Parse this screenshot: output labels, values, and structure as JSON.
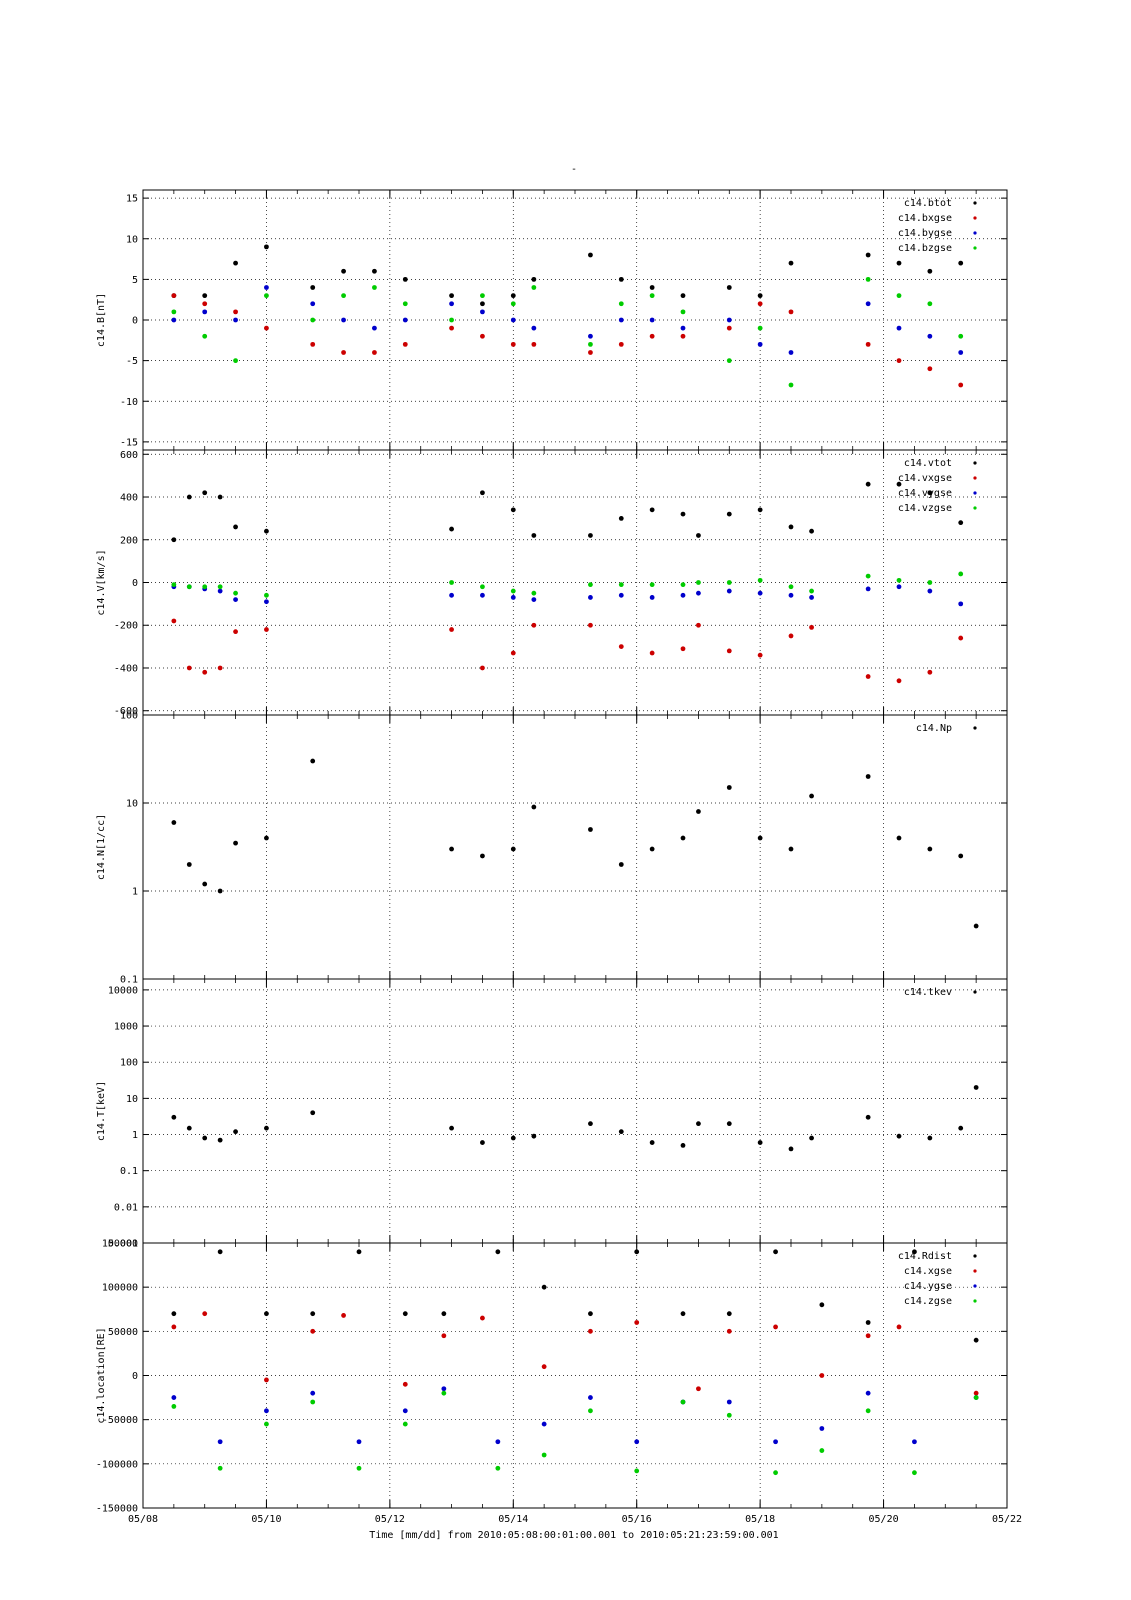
{
  "chart_data": {
    "type": "scatter",
    "title": "-",
    "xlabel": "Time [mm/dd]  from 2010:05:08:00:01:00.001  to  2010:05:21:23:59:00.001",
    "x_range": [
      "05/08",
      "05/22"
    ],
    "x_ticks": [
      "05/08",
      "05/10",
      "05/12",
      "05/14",
      "05/16",
      "05/18",
      "05/20",
      "05/22"
    ],
    "grid": true,
    "legend_placement": "top-right",
    "colors": {
      "black": "#000000",
      "red": "#cc0000",
      "blue": "#0000cc",
      "green": "#00cc00"
    },
    "panels": [
      {
        "ylabel": "c14.B[nT]",
        "ylim": [
          -16,
          16
        ],
        "scale": "linear",
        "y_ticks": [
          "15",
          "10",
          "5",
          "0",
          "-5",
          "-10",
          "-15"
        ],
        "y_tick_values": [
          15,
          10,
          5,
          0,
          -5,
          -10,
          -15
        ],
        "series": [
          {
            "name": "c14.btot",
            "color": "black",
            "x": [
              "05/08 12:00",
              "05/09 00:00",
              "05/09 12:00",
              "05/10 00:00",
              "05/10 18:00",
              "05/11 06:00",
              "05/11 18:00",
              "05/12 06:00",
              "05/13 00:00",
              "05/13 12:00",
              "05/14 00:00",
              "05/14 08:00",
              "05/15 06:00",
              "05/15 18:00",
              "05/16 06:00",
              "05/16 18:00",
              "05/17 12:00",
              "05/18 00:00",
              "05/18 12:00",
              "05/19 18:00",
              "05/20 06:00",
              "05/20 18:00",
              "05/21 06:00"
            ],
            "y": [
              3,
              3,
              7,
              9,
              4,
              6,
              6,
              5,
              3,
              2,
              3,
              5,
              8,
              5,
              4,
              3,
              4,
              3,
              7,
              8,
              7,
              6,
              7
            ]
          },
          {
            "name": "c14.bxgse",
            "color": "red",
            "x": [
              "05/08 12:00",
              "05/09 00:00",
              "05/09 12:00",
              "05/10 00:00",
              "05/10 18:00",
              "05/11 06:00",
              "05/11 18:00",
              "05/12 06:00",
              "05/13 00:00",
              "05/13 12:00",
              "05/14 00:00",
              "05/14 08:00",
              "05/15 06:00",
              "05/15 18:00",
              "05/16 06:00",
              "05/16 18:00",
              "05/17 12:00",
              "05/18 00:00",
              "05/18 12:00",
              "05/19 18:00",
              "05/20 06:00",
              "05/20 18:00",
              "05/21 06:00"
            ],
            "y": [
              3,
              2,
              1,
              -1,
              -3,
              -4,
              -4,
              -3,
              -1,
              -2,
              -3,
              -3,
              -4,
              -3,
              -2,
              -2,
              -1,
              2,
              1,
              -3,
              -5,
              -6,
              -8
            ]
          },
          {
            "name": "c14.bygse",
            "color": "blue",
            "x": [
              "05/08 12:00",
              "05/09 00:00",
              "05/09 12:00",
              "05/10 00:00",
              "05/10 18:00",
              "05/11 06:00",
              "05/11 18:00",
              "05/12 06:00",
              "05/13 00:00",
              "05/13 12:00",
              "05/14 00:00",
              "05/14 08:00",
              "05/15 06:00",
              "05/15 18:00",
              "05/16 06:00",
              "05/16 18:00",
              "05/17 12:00",
              "05/18 00:00",
              "05/18 12:00",
              "05/19 18:00",
              "05/20 06:00",
              "05/20 18:00",
              "05/21 06:00"
            ],
            "y": [
              0,
              1,
              0,
              4,
              2,
              0,
              -1,
              0,
              2,
              1,
              0,
              -1,
              -2,
              0,
              0,
              -1,
              0,
              -3,
              -4,
              2,
              -1,
              -2,
              -4
            ]
          },
          {
            "name": "c14.bzgse",
            "color": "green",
            "x": [
              "05/08 12:00",
              "05/09 00:00",
              "05/09 12:00",
              "05/10 00:00",
              "05/10 18:00",
              "05/11 06:00",
              "05/11 18:00",
              "05/12 06:00",
              "05/13 00:00",
              "05/13 12:00",
              "05/14 00:00",
              "05/14 08:00",
              "05/15 06:00",
              "05/15 18:00",
              "05/16 06:00",
              "05/16 18:00",
              "05/17 12:00",
              "05/18 00:00",
              "05/18 12:00",
              "05/19 18:00",
              "05/20 06:00",
              "05/20 18:00",
              "05/21 06:00"
            ],
            "y": [
              1,
              -2,
              -5,
              3,
              0,
              3,
              4,
              2,
              0,
              3,
              2,
              4,
              -3,
              2,
              3,
              1,
              -5,
              -1,
              -8,
              5,
              3,
              2,
              -2
            ]
          }
        ]
      },
      {
        "ylabel": "c14.V[km/s]",
        "ylim": [
          -620,
          620
        ],
        "scale": "linear",
        "y_ticks": [
          "600",
          "400",
          "200",
          "0",
          "-200",
          "-400",
          "-600"
        ],
        "y_tick_values": [
          600,
          400,
          200,
          0,
          -200,
          -400,
          -600
        ],
        "series": [
          {
            "name": "c14.vtot",
            "color": "black",
            "x": [
              "05/08 12:00",
              "05/08 18:00",
              "05/09 00:00",
              "05/09 06:00",
              "05/09 12:00",
              "05/10 00:00",
              "05/13 00:00",
              "05/13 12:00",
              "05/14 00:00",
              "05/14 08:00",
              "05/15 06:00",
              "05/15 18:00",
              "05/16 06:00",
              "05/16 18:00",
              "05/17 00:00",
              "05/17 12:00",
              "05/18 00:00",
              "05/18 12:00",
              "05/18 20:00",
              "05/19 18:00",
              "05/20 06:00",
              "05/20 18:00",
              "05/21 06:00"
            ],
            "y": [
              200,
              400,
              420,
              400,
              260,
              240,
              250,
              420,
              340,
              220,
              220,
              300,
              340,
              320,
              220,
              320,
              340,
              260,
              240,
              460,
              460,
              420,
              280
            ]
          },
          {
            "name": "c14.vxgse",
            "color": "red",
            "x": [
              "05/08 12:00",
              "05/08 18:00",
              "05/09 00:00",
              "05/09 06:00",
              "05/09 12:00",
              "05/10 00:00",
              "05/13 00:00",
              "05/13 12:00",
              "05/14 00:00",
              "05/14 08:00",
              "05/15 06:00",
              "05/15 18:00",
              "05/16 06:00",
              "05/16 18:00",
              "05/17 00:00",
              "05/17 12:00",
              "05/18 00:00",
              "05/18 12:00",
              "05/18 20:00",
              "05/19 18:00",
              "05/20 06:00",
              "05/20 18:00",
              "05/21 06:00"
            ],
            "y": [
              -180,
              -400,
              -420,
              -400,
              -230,
              -220,
              -220,
              -400,
              -330,
              -200,
              -200,
              -300,
              -330,
              -310,
              -200,
              -320,
              -340,
              -250,
              -210,
              -440,
              -460,
              -420,
              -260
            ]
          },
          {
            "name": "c14.vygse",
            "color": "blue",
            "x": [
              "05/08 12:00",
              "05/08 18:00",
              "05/09 00:00",
              "05/09 06:00",
              "05/09 12:00",
              "05/10 00:00",
              "05/13 00:00",
              "05/13 12:00",
              "05/14 00:00",
              "05/14 08:00",
              "05/15 06:00",
              "05/15 18:00",
              "05/16 06:00",
              "05/16 18:00",
              "05/17 00:00",
              "05/17 12:00",
              "05/18 00:00",
              "05/18 12:00",
              "05/18 20:00",
              "05/19 18:00",
              "05/20 06:00",
              "05/20 18:00",
              "05/21 06:00"
            ],
            "y": [
              -20,
              -20,
              -30,
              -40,
              -80,
              -90,
              -60,
              -60,
              -70,
              -80,
              -70,
              -60,
              -70,
              -60,
              -50,
              -40,
              -50,
              -60,
              -70,
              -30,
              -20,
              -40,
              -100
            ]
          },
          {
            "name": "c14.vzgse",
            "color": "green",
            "x": [
              "05/08 12:00",
              "05/08 18:00",
              "05/09 00:00",
              "05/09 06:00",
              "05/09 12:00",
              "05/10 00:00",
              "05/13 00:00",
              "05/13 12:00",
              "05/14 00:00",
              "05/14 08:00",
              "05/15 06:00",
              "05/15 18:00",
              "05/16 06:00",
              "05/16 18:00",
              "05/17 00:00",
              "05/17 12:00",
              "05/18 00:00",
              "05/18 12:00",
              "05/18 20:00",
              "05/19 18:00",
              "05/20 06:00",
              "05/20 18:00",
              "05/21 06:00"
            ],
            "y": [
              -10,
              -20,
              -20,
              -20,
              -50,
              -60,
              0,
              -20,
              -40,
              -50,
              -10,
              -10,
              -10,
              -10,
              0,
              0,
              10,
              -20,
              -40,
              30,
              10,
              0,
              40
            ]
          }
        ]
      },
      {
        "ylabel": "c14.N[1/cc]",
        "ylim": [
          0.1,
          100
        ],
        "scale": "log",
        "y_ticks": [
          "100",
          "10",
          "1",
          "0.1"
        ],
        "y_tick_values": [
          100,
          10,
          1,
          0.1
        ],
        "series": [
          {
            "name": "c14.Np",
            "color": "black",
            "x": [
              "05/08 12:00",
              "05/08 18:00",
              "05/09 00:00",
              "05/09 06:00",
              "05/09 12:00",
              "05/10 00:00",
              "05/10 18:00",
              "05/13 00:00",
              "05/13 12:00",
              "05/14 00:00",
              "05/14 08:00",
              "05/15 06:00",
              "05/15 18:00",
              "05/16 06:00",
              "05/16 18:00",
              "05/17 00:00",
              "05/17 12:00",
              "05/18 00:00",
              "05/18 12:00",
              "05/18 20:00",
              "05/19 18:00",
              "05/20 06:00",
              "05/20 18:00",
              "05/21 06:00",
              "05/21 12:00"
            ],
            "y": [
              6,
              2,
              1.2,
              1,
              3.5,
              4,
              30,
              3,
              2.5,
              3,
              9,
              5,
              2,
              3,
              4,
              8,
              15,
              4,
              3,
              12,
              20,
              4,
              3,
              2.5,
              0.4
            ]
          }
        ]
      },
      {
        "ylabel": "c14.T[keV]",
        "ylim": [
          0.001,
          20000
        ],
        "scale": "log",
        "y_ticks": [
          "10000",
          "1000",
          "100",
          "10",
          "1",
          "0.1",
          "0.01",
          "0.001"
        ],
        "y_tick_values": [
          10000,
          1000,
          100,
          10,
          1,
          0.1,
          0.01,
          0.001
        ],
        "series": [
          {
            "name": "c14.tkev",
            "color": "black",
            "x": [
              "05/08 12:00",
              "05/08 18:00",
              "05/09 00:00",
              "05/09 06:00",
              "05/09 12:00",
              "05/10 00:00",
              "05/10 18:00",
              "05/13 00:00",
              "05/13 12:00",
              "05/14 00:00",
              "05/14 08:00",
              "05/15 06:00",
              "05/15 18:00",
              "05/16 06:00",
              "05/16 18:00",
              "05/17 00:00",
              "05/17 12:00",
              "05/18 00:00",
              "05/18 12:00",
              "05/18 20:00",
              "05/19 18:00",
              "05/20 06:00",
              "05/20 18:00",
              "05/21 06:00",
              "05/21 12:00"
            ],
            "y": [
              3,
              1.5,
              0.8,
              0.7,
              1.2,
              1.5,
              4,
              1.5,
              0.6,
              0.8,
              0.9,
              2,
              1.2,
              0.6,
              0.5,
              2,
              2,
              0.6,
              0.4,
              0.8,
              3,
              0.9,
              0.8,
              1.5,
              20
            ]
          }
        ]
      },
      {
        "ylabel": "c14.location[RE]",
        "ylim": [
          -150000,
          150000
        ],
        "scale": "linear",
        "y_ticks": [
          "150000",
          "100000",
          "50000",
          "0",
          "-50000",
          "-100000",
          "-150000"
        ],
        "y_tick_values": [
          150000,
          100000,
          50000,
          0,
          -50000,
          -100000,
          -150000
        ],
        "series": [
          {
            "name": "c14.Rdist",
            "color": "black",
            "x": [
              "05/08 12:00",
              "05/09 06:00",
              "05/10 00:00",
              "05/10 18:00",
              "05/11 12:00",
              "05/12 06:00",
              "05/12 21:00",
              "05/13 18:00",
              "05/14 12:00",
              "05/15 06:00",
              "05/16 00:00",
              "05/16 18:00",
              "05/17 12:00",
              "05/18 06:00",
              "05/19 00:00",
              "05/19 18:00",
              "05/20 12:00",
              "05/21 12:00"
            ],
            "y": [
              70000,
              140000,
              70000,
              70000,
              140000,
              70000,
              70000,
              140000,
              100000,
              70000,
              140000,
              70000,
              70000,
              140000,
              80000,
              60000,
              140000,
              40000
            ]
          },
          {
            "name": "c14.xgse",
            "color": "red",
            "x": [
              "05/08 12:00",
              "05/09 00:00",
              "05/10 00:00",
              "05/10 18:00",
              "05/11 06:00",
              "05/12 06:00",
              "05/12 21:00",
              "05/13 12:00",
              "05/14 12:00",
              "05/15 06:00",
              "05/16 00:00",
              "05/17 00:00",
              "05/17 12:00",
              "05/18 06:00",
              "05/19 00:00",
              "05/19 18:00",
              "05/20 06:00",
              "05/21 12:00"
            ],
            "y": [
              55000,
              70000,
              -5000,
              50000,
              68000,
              -10000,
              45000,
              65000,
              10000,
              50000,
              60000,
              -15000,
              50000,
              55000,
              0,
              45000,
              55000,
              -20000
            ]
          },
          {
            "name": "c14.ygse",
            "color": "blue",
            "x": [
              "05/08 12:00",
              "05/09 06:00",
              "05/10 00:00",
              "05/10 18:00",
              "05/11 12:00",
              "05/12 06:00",
              "05/12 21:00",
              "05/13 18:00",
              "05/14 12:00",
              "05/15 06:00",
              "05/16 00:00",
              "05/16 18:00",
              "05/17 12:00",
              "05/18 06:00",
              "05/19 00:00",
              "05/19 18:00",
              "05/20 12:00",
              "05/21 12:00"
            ],
            "y": [
              -25000,
              -75000,
              -40000,
              -20000,
              -75000,
              -40000,
              -15000,
              -75000,
              -55000,
              -25000,
              -75000,
              -30000,
              -30000,
              -75000,
              -60000,
              -20000,
              -75000,
              -25000
            ]
          },
          {
            "name": "c14.zgse",
            "color": "green",
            "x": [
              "05/08 12:00",
              "05/09 06:00",
              "05/10 00:00",
              "05/10 18:00",
              "05/11 12:00",
              "05/12 06:00",
              "05/12 21:00",
              "05/13 18:00",
              "05/14 12:00",
              "05/15 06:00",
              "05/16 00:00",
              "05/16 18:00",
              "05/17 12:00",
              "05/18 06:00",
              "05/19 00:00",
              "05/19 18:00",
              "05/20 12:00",
              "05/21 12:00"
            ],
            "y": [
              -35000,
              -105000,
              -55000,
              -30000,
              -105000,
              -55000,
              -20000,
              -105000,
              -90000,
              -40000,
              -108000,
              -30000,
              -45000,
              -110000,
              -85000,
              -40000,
              -110000,
              -25000
            ]
          }
        ]
      }
    ]
  }
}
